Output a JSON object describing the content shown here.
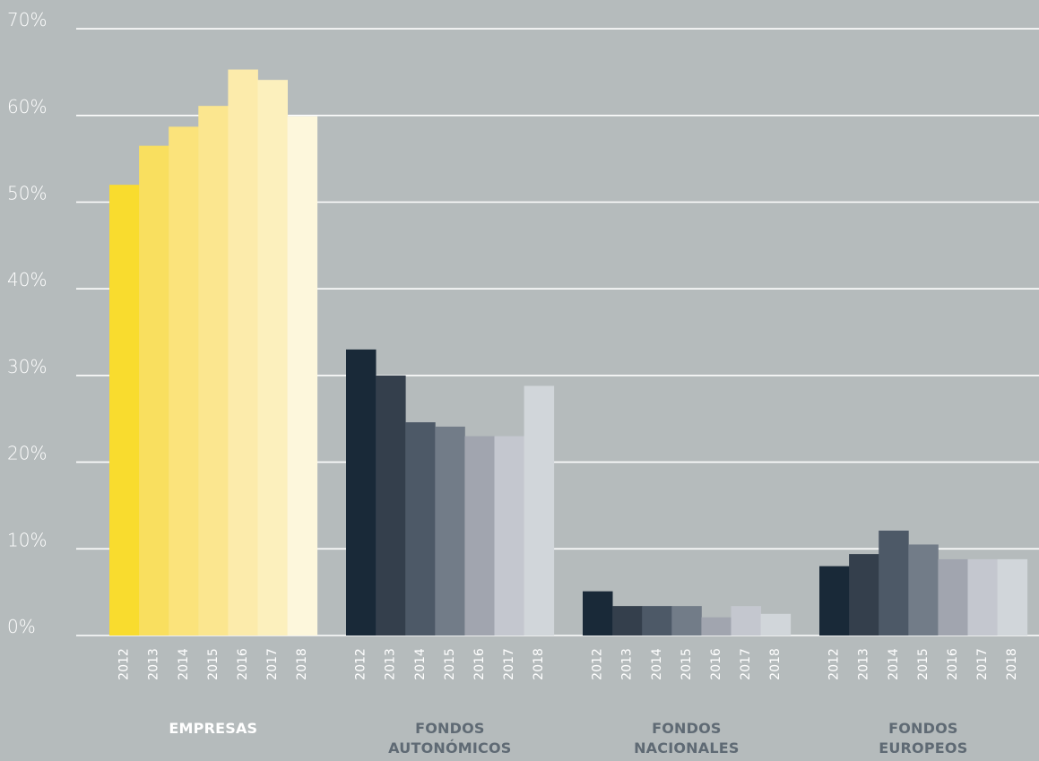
{
  "chart_data": {
    "type": "bar",
    "ylim": [
      0,
      70
    ],
    "ytick_labels": [
      "0%",
      "10%",
      "20%",
      "30%",
      "40%",
      "50%",
      "60%",
      "70%"
    ],
    "year_labels": [
      "2012",
      "2013",
      "2014",
      "2015",
      "2016",
      "2017",
      "2018"
    ],
    "grid": true,
    "groups": [
      {
        "label_lines": [
          "EMPRESAS"
        ],
        "label_color": "#ffffff",
        "colors": [
          "#f9dc2e",
          "#f9df5f",
          "#fbe37b",
          "#fbe68f",
          "#fcebab",
          "#fcf0bd",
          "#fdf7dc"
        ],
        "values": [
          52.0,
          56.5,
          58.7,
          61.1,
          65.3,
          64.1,
          59.9
        ]
      },
      {
        "label_lines": [
          "FONDOS",
          "AUTONÓMICOS"
        ],
        "label_color": "#5f6a74",
        "colors": [
          "#192938",
          "#343f4c",
          "#4d5967",
          "#727c88",
          "#a1a5af",
          "#c4c7cf",
          "#d1d6da"
        ],
        "values": [
          33.0,
          30.0,
          24.6,
          24.1,
          23.0,
          23.0,
          28.8
        ]
      },
      {
        "label_lines": [
          "FONDOS",
          "NACIONALES"
        ],
        "label_color": "#5f6a74",
        "colors": [
          "#192938",
          "#343f4c",
          "#4d5967",
          "#727c88",
          "#a1a5af",
          "#c4c7cf",
          "#d1d6da"
        ],
        "values": [
          5.1,
          3.4,
          3.4,
          3.4,
          2.1,
          3.4,
          2.5
        ]
      },
      {
        "label_lines": [
          "FONDOS",
          "EUROPEOS"
        ],
        "label_color": "#5f6a74",
        "colors": [
          "#192938",
          "#343f4c",
          "#4d5967",
          "#727c88",
          "#a1a5af",
          "#c4c7cf",
          "#d1d6da"
        ],
        "values": [
          8.0,
          9.4,
          12.1,
          10.5,
          8.8,
          8.8,
          8.8
        ]
      }
    ]
  }
}
